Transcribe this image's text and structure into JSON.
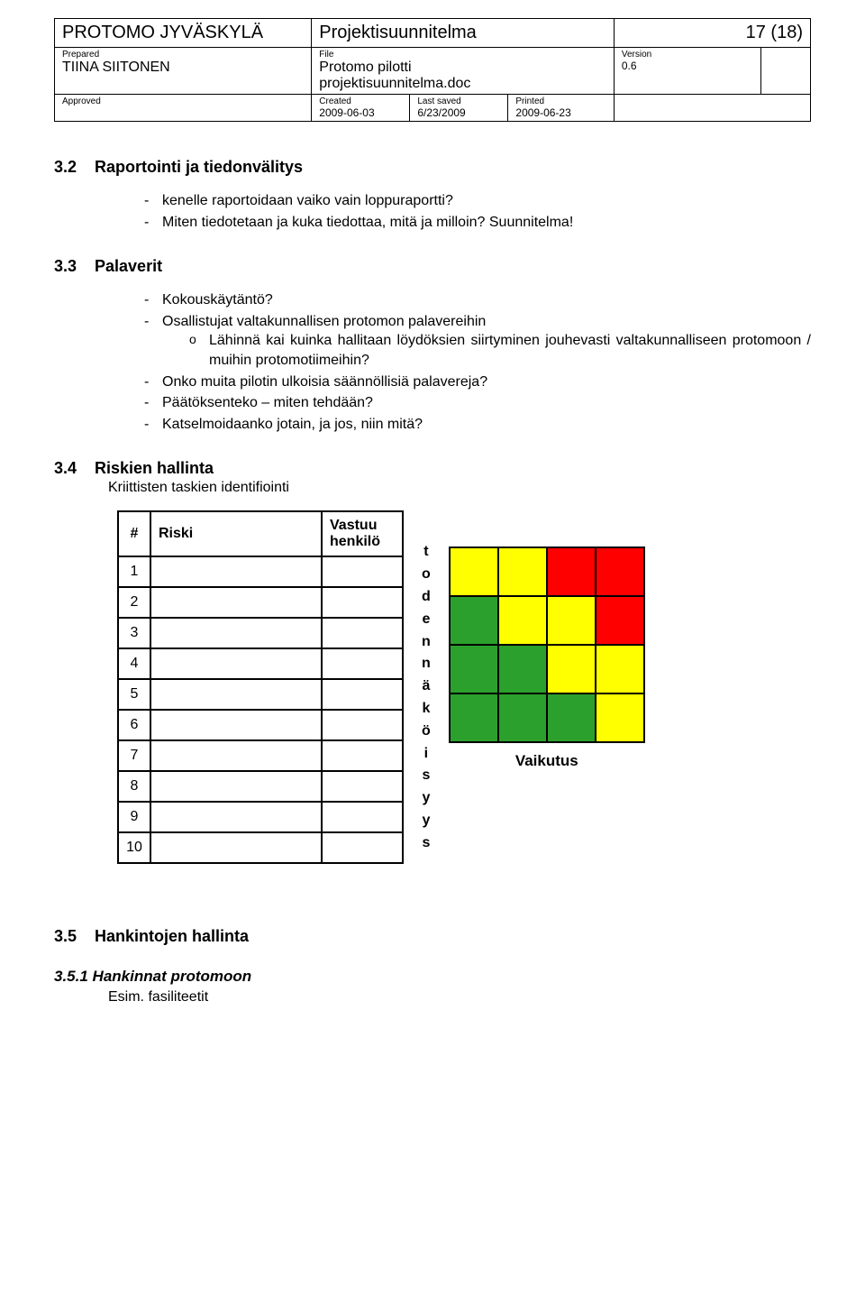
{
  "header": {
    "org": "PROTOMO JYVÄSKYLÄ",
    "doc_type": "Projektisuunnitelma",
    "page": "17 (18)",
    "prepared_label": "Prepared",
    "prepared_value": "TIINA SIITONEN",
    "file_label": "File",
    "file_value1": "Protomo pilotti",
    "file_value2": "projektisuunnitelma.doc",
    "version_label": "Version",
    "version_value": "0.6",
    "approved_label": "Approved",
    "created_label": "Created",
    "created_value": "2009-06-03",
    "lastsaved_label": "Last saved",
    "lastsaved_value": "6/23/2009",
    "printed_label": "Printed",
    "printed_value": "2009-06-23"
  },
  "s32": {
    "num": "3.2",
    "title": "Raportointi ja tiedonvälitys",
    "items": [
      "kenelle raportoidaan vaiko vain loppuraportti?",
      "Miten tiedotetaan ja kuka tiedottaa, mitä ja milloin? Suunnitelma!"
    ]
  },
  "s33": {
    "num": "3.3",
    "title": "Palaverit",
    "item1": "Kokouskäytäntö?",
    "item2": "Osallistujat valtakunnallisen protomon palavereihin",
    "item2sub": "Lähinnä kai kuinka hallitaan löydöksien siirtyminen jouhevasti valtakunnalliseen protomoon / muihin protomotiimeihin?",
    "item3": "Onko muita pilotin ulkoisia säännöllisiä palavereja?",
    "item4": "Päätöksenteko – miten tehdään?",
    "item5": "Katselmoidaanko jotain, ja jos, niin mitä?"
  },
  "s34": {
    "num": "3.4",
    "title": "Riskien hallinta",
    "subtitle": "Kriittisten taskien identifiointi",
    "table": {
      "headers": [
        "#",
        "Riski",
        "Vastuu henkilö"
      ],
      "rows": [
        "1",
        "2",
        "3",
        "4",
        "5",
        "6",
        "7",
        "8",
        "9",
        "10"
      ]
    },
    "vlabel": "todennäköisyys",
    "matrix_caption": "Vaikutus",
    "matrix_colors": [
      [
        "y",
        "y",
        "r",
        "r"
      ],
      [
        "g",
        "y",
        "y",
        "r"
      ],
      [
        "g",
        "g",
        "y",
        "y"
      ],
      [
        "g",
        "g",
        "g",
        "y"
      ]
    ]
  },
  "s35": {
    "num": "3.5",
    "title": "Hankintojen hallinta"
  },
  "s351": {
    "num": "3.5.1",
    "title": "Hankinnat protomoon",
    "body": "Esim. fasiliteetit"
  }
}
